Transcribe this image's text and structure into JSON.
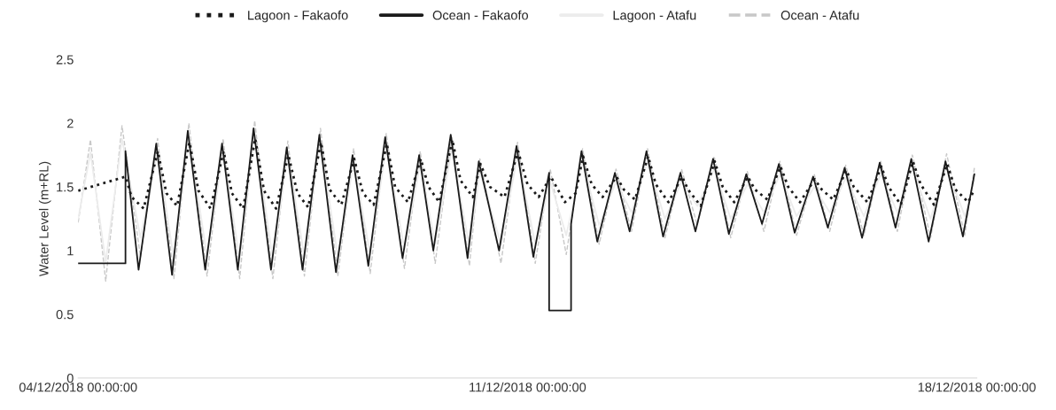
{
  "chart_data": {
    "type": "line",
    "ylabel": "Water Level (m+RL)",
    "xlim": [
      "2018-12-04T00:00",
      "2018-12-18T00:00"
    ],
    "xticks": [
      {
        "value": "2018-12-04T00:00",
        "label": "04/12/2018 00:00:00"
      },
      {
        "value": "2018-12-11T00:00",
        "label": "11/12/2018 00:00:00"
      },
      {
        "value": "2018-12-18T00:00",
        "label": "18/12/2018 00:00:00"
      }
    ],
    "ylim": [
      0,
      2.5
    ],
    "yticks": [
      0,
      0.5,
      1,
      1.5,
      2,
      2.5
    ],
    "grid": false,
    "legend": "top",
    "series": [
      {
        "name": "Lagoon - Fakaofo",
        "color": "#1a1a1a",
        "line_style": "dotted",
        "x": [
          "2018-12-04T00:00",
          "2018-12-04T17:42",
          "2018-12-04T20:00",
          "2018-12-05T00:30",
          "2018-12-05T05:48",
          "2018-12-05T09:00",
          "2018-12-05T13:00",
          "2018-12-05T17:36",
          "2018-12-05T21:00",
          "2018-12-06T01:30",
          "2018-12-06T06:24",
          "2018-12-06T09:30",
          "2018-12-06T13:42",
          "2018-12-06T18:12",
          "2018-12-06T21:30",
          "2018-12-07T02:00",
          "2018-12-07T06:36",
          "2018-12-07T10:00",
          "2018-12-07T14:00",
          "2018-12-07T18:48",
          "2018-12-07T22:00",
          "2018-12-08T02:24",
          "2018-12-08T07:12",
          "2018-12-08T10:30",
          "2018-12-08T14:30",
          "2018-12-08T19:24",
          "2018-12-08T22:30",
          "2018-12-09T03:18",
          "2018-12-09T08:06",
          "2018-12-09T11:00",
          "2018-12-09T15:00",
          "2018-12-09T19:54",
          "2018-12-09T23:00",
          "2018-12-10T03:36",
          "2018-12-10T06:24",
          "2018-12-10T10:00",
          "2018-12-10T15:24",
          "2018-12-10T20:30",
          "2018-12-11T00:00",
          "2018-12-11T04:12",
          "2018-12-11T08:42",
          "2018-12-11T14:00",
          "2018-12-11T18:00",
          "2018-12-11T20:48",
          "2018-12-12T00:00",
          "2018-12-12T04:06",
          "2018-12-12T09:18",
          "2018-12-12T12:00",
          "2018-12-12T16:12",
          "2018-12-12T21:06",
          "2018-12-13T00:00",
          "2018-12-13T04:42",
          "2018-12-13T09:48",
          "2018-12-13T12:00",
          "2018-12-13T16:48",
          "2018-12-13T22:00",
          "2018-12-14T01:00",
          "2018-12-14T05:18",
          "2018-12-14T10:24",
          "2018-12-14T13:00",
          "2018-12-14T17:42",
          "2018-12-14T22:36",
          "2018-12-15T01:30",
          "2018-12-15T05:54",
          "2018-12-15T11:24",
          "2018-12-15T14:00",
          "2018-12-15T18:18",
          "2018-12-15T23:12",
          "2018-12-16T02:00",
          "2018-12-16T07:06",
          "2018-12-16T12:18",
          "2018-12-16T15:00",
          "2018-12-16T19:36",
          "2018-12-17T00:06",
          "2018-12-17T03:00",
          "2018-12-17T08:00",
          "2018-12-17T12:54",
          "2018-12-17T16:00",
          "2018-12-17T20:48",
          "2018-12-17T23:06"
        ],
        "values": [
          1.47,
          1.58,
          1.42,
          1.33,
          1.78,
          1.45,
          1.35,
          1.85,
          1.47,
          1.33,
          1.78,
          1.45,
          1.33,
          1.88,
          1.47,
          1.33,
          1.75,
          1.45,
          1.34,
          1.85,
          1.48,
          1.36,
          1.72,
          1.45,
          1.36,
          1.84,
          1.5,
          1.38,
          1.72,
          1.5,
          1.38,
          1.87,
          1.55,
          1.42,
          1.68,
          1.5,
          1.42,
          1.78,
          1.52,
          1.42,
          1.58,
          1.38,
          1.45,
          1.74,
          1.52,
          1.42,
          1.58,
          1.48,
          1.4,
          1.74,
          1.52,
          1.38,
          1.58,
          1.48,
          1.35,
          1.7,
          1.5,
          1.38,
          1.58,
          1.48,
          1.4,
          1.66,
          1.5,
          1.38,
          1.56,
          1.48,
          1.4,
          1.63,
          1.5,
          1.38,
          1.66,
          1.5,
          1.36,
          1.7,
          1.52,
          1.36,
          1.68,
          1.48,
          1.38,
          1.48
        ]
      },
      {
        "name": "Ocean - Fakaofo",
        "color": "#1a1a1a",
        "line_style": "solid",
        "x": [
          "2018-12-04T00:00",
          "2018-12-04T17:42",
          "2018-12-04T17:42",
          "2018-12-04T22:36",
          "2018-12-05T05:12",
          "2018-12-05T11:06",
          "2018-12-05T17:00",
          "2018-12-05T23:30",
          "2018-12-06T05:48",
          "2018-12-06T11:42",
          "2018-12-06T17:36",
          "2018-12-07T00:06",
          "2018-12-07T06:00",
          "2018-12-07T11:54",
          "2018-12-07T18:12",
          "2018-12-08T00:24",
          "2018-12-08T06:36",
          "2018-12-08T12:30",
          "2018-12-08T18:48",
          "2018-12-09T01:18",
          "2018-12-09T07:30",
          "2018-12-09T12:48",
          "2018-12-09T19:18",
          "2018-12-10T01:36",
          "2018-12-10T05:48",
          "2018-12-10T13:24",
          "2018-12-10T19:54",
          "2018-12-11T02:12",
          "2018-12-11T08:06",
          "2018-12-11T08:06",
          "2018-12-11T16:18",
          "2018-12-11T16:18",
          "2018-12-11T20:12",
          "2018-12-12T02:06",
          "2018-12-12T08:42",
          "2018-12-12T14:12",
          "2018-12-12T20:30",
          "2018-12-13T02:42",
          "2018-12-13T09:12",
          "2018-12-13T14:48",
          "2018-12-13T21:24",
          "2018-12-14T03:18",
          "2018-12-14T09:48",
          "2018-12-14T15:42",
          "2018-12-14T22:00",
          "2018-12-15T03:54",
          "2018-12-15T10:48",
          "2018-12-15T16:18",
          "2018-12-15T22:36",
          "2018-12-16T05:06",
          "2018-12-16T11:42",
          "2018-12-16T17:36",
          "2018-12-16T23:30",
          "2018-12-17T06:00",
          "2018-12-17T12:18",
          "2018-12-17T18:48",
          "2018-12-17T23:06"
        ],
        "values": [
          0.9,
          0.9,
          1.78,
          0.85,
          1.84,
          0.81,
          1.94,
          0.85,
          1.84,
          0.85,
          1.96,
          0.85,
          1.81,
          0.85,
          1.91,
          0.83,
          1.75,
          0.88,
          1.89,
          0.94,
          1.75,
          1.0,
          1.91,
          0.94,
          1.7,
          1.0,
          1.82,
          0.95,
          1.61,
          0.53,
          0.53,
          1.21,
          1.78,
          1.07,
          1.61,
          1.15,
          1.78,
          1.11,
          1.61,
          1.15,
          1.72,
          1.13,
          1.6,
          1.21,
          1.68,
          1.14,
          1.58,
          1.18,
          1.65,
          1.1,
          1.69,
          1.18,
          1.72,
          1.07,
          1.7,
          1.11,
          1.6
        ]
      },
      {
        "name": "Lagoon - Atafu",
        "color": "#ececec",
        "line_style": "solid",
        "x": [
          "2018-12-04T00:00",
          "2018-12-04T04:36",
          "2018-12-04T10:18",
          "2018-12-04T16:24",
          "2018-12-04T23:18",
          "2018-12-05T05:42",
          "2018-12-05T11:48",
          "2018-12-05T17:24",
          "2018-12-06T00:12",
          "2018-12-06T06:12",
          "2018-12-06T12:24",
          "2018-12-06T18:00",
          "2018-12-07T00:48",
          "2018-12-07T06:24",
          "2018-12-07T12:36",
          "2018-12-07T18:36",
          "2018-12-08T01:06",
          "2018-12-08T07:00",
          "2018-12-08T13:12",
          "2018-12-08T19:12",
          "2018-12-09T02:00",
          "2018-12-09T07:54",
          "2018-12-09T13:30",
          "2018-12-09T19:42",
          "2018-12-10T02:18",
          "2018-12-10T06:12",
          "2018-12-10T14:06",
          "2018-12-10T20:18",
          "2018-12-11T02:54",
          "2018-12-11T08:30",
          "2018-12-11T14:30",
          "2018-12-11T20:36",
          "2018-12-12T02:48",
          "2018-12-12T09:06",
          "2018-12-12T14:54",
          "2018-12-12T20:54",
          "2018-12-13T03:24",
          "2018-12-13T09:36",
          "2018-12-13T15:30",
          "2018-12-13T21:48",
          "2018-12-14T04:00",
          "2018-12-14T10:12",
          "2018-12-14T16:24",
          "2018-12-14T22:24",
          "2018-12-15T04:36",
          "2018-12-15T11:12",
          "2018-12-15T17:00",
          "2018-12-15T23:00",
          "2018-12-16T05:48",
          "2018-12-16T12:06",
          "2018-12-16T18:18",
          "2018-12-16T23:54",
          "2018-12-17T06:42",
          "2018-12-17T12:42",
          "2018-12-17T19:30",
          "2018-12-17T23:06"
        ],
        "values": [
          1.25,
          1.77,
          0.91,
          1.88,
          1.1,
          1.78,
          0.93,
          1.9,
          0.95,
          1.78,
          0.93,
          1.92,
          0.93,
          1.76,
          0.95,
          1.86,
          0.95,
          1.7,
          0.97,
          1.82,
          1.01,
          1.68,
          1.05,
          1.8,
          1.03,
          1.62,
          1.05,
          1.75,
          1.05,
          1.54,
          1.12,
          1.7,
          1.2,
          1.54,
          1.3,
          1.7,
          1.25,
          1.54,
          1.35,
          1.64,
          1.25,
          1.52,
          1.3,
          1.6,
          1.27,
          1.5,
          1.3,
          1.57,
          1.27,
          1.6,
          1.3,
          1.65,
          1.25,
          1.66,
          1.27,
          1.55
        ]
      },
      {
        "name": "Ocean - Atafu",
        "color": "#c8c8c8",
        "line_style": "dashed",
        "x": [
          "2018-12-04T00:00",
          "2018-12-04T04:36",
          "2018-12-04T10:18",
          "2018-12-04T16:24",
          "2018-12-04T23:18",
          "2018-12-05T05:42",
          "2018-12-05T11:48",
          "2018-12-05T17:24",
          "2018-12-06T00:12",
          "2018-12-06T06:12",
          "2018-12-06T12:24",
          "2018-12-06T18:00",
          "2018-12-07T00:48",
          "2018-12-07T06:24",
          "2018-12-07T12:36",
          "2018-12-07T18:36",
          "2018-12-08T01:06",
          "2018-12-08T07:00",
          "2018-12-08T13:12",
          "2018-12-08T19:12",
          "2018-12-09T02:00",
          "2018-12-09T07:54",
          "2018-12-09T13:30",
          "2018-12-09T19:42",
          "2018-12-10T02:18",
          "2018-12-10T06:12",
          "2018-12-10T14:06",
          "2018-12-10T20:18",
          "2018-12-11T02:54",
          "2018-12-11T08:30",
          "2018-12-11T14:30",
          "2018-12-11T20:36",
          "2018-12-12T02:48",
          "2018-12-12T09:06",
          "2018-12-12T14:54",
          "2018-12-12T20:54",
          "2018-12-13T03:24",
          "2018-12-13T09:36",
          "2018-12-13T15:30",
          "2018-12-13T21:48",
          "2018-12-14T04:00",
          "2018-12-14T10:12",
          "2018-12-14T16:24",
          "2018-12-14T22:24",
          "2018-12-15T04:36",
          "2018-12-15T11:12",
          "2018-12-15T17:00",
          "2018-12-15T23:00",
          "2018-12-16T05:48",
          "2018-12-16T12:06",
          "2018-12-16T18:18",
          "2018-12-16T23:54",
          "2018-12-17T06:42",
          "2018-12-17T12:42",
          "2018-12-17T19:30",
          "2018-12-17T23:06"
        ],
        "values": [
          1.22,
          1.87,
          0.76,
          1.98,
          0.95,
          1.88,
          0.78,
          2.0,
          0.8,
          1.88,
          0.78,
          2.02,
          0.78,
          1.86,
          0.8,
          1.96,
          0.8,
          1.8,
          0.82,
          1.92,
          0.86,
          1.78,
          0.9,
          1.9,
          0.88,
          1.72,
          0.9,
          1.85,
          0.9,
          1.64,
          0.97,
          1.8,
          1.05,
          1.64,
          1.15,
          1.8,
          1.1,
          1.64,
          1.2,
          1.74,
          1.1,
          1.62,
          1.15,
          1.7,
          1.12,
          1.6,
          1.15,
          1.67,
          1.12,
          1.7,
          1.15,
          1.75,
          1.1,
          1.76,
          1.12,
          1.65
        ]
      }
    ]
  }
}
